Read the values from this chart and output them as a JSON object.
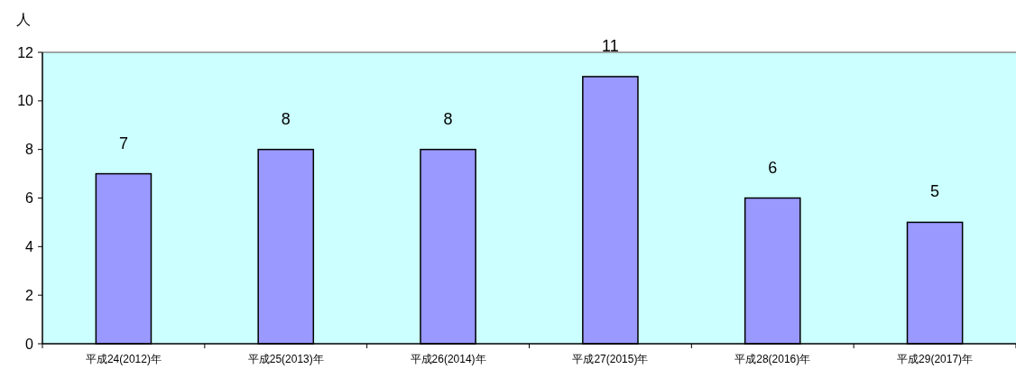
{
  "chart_data": {
    "type": "bar",
    "ylabel": "人",
    "categories": [
      "平成24(2012)年",
      "平成25(2013)年",
      "平成26(2014)年",
      "平成27(2015)年",
      "平成28(2016)年",
      "平成29(2017)年"
    ],
    "values": [
      7,
      8,
      8,
      11,
      6,
      5
    ],
    "color": "#9999ff",
    "data_labels": true,
    "ylim": [
      0,
      12
    ],
    "yticks": [
      0,
      2,
      4,
      6,
      8,
      10,
      12
    ],
    "grid": false
  }
}
